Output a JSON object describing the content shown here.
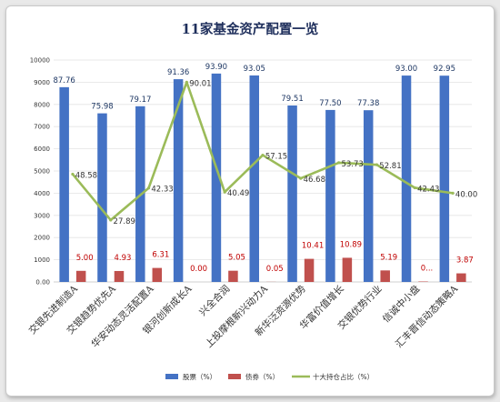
{
  "chart_data": {
    "type": "bar",
    "title": "11家基金资产配置一览",
    "categories": [
      "交银先进制造A",
      "交银趋势优先A",
      "华安动态灵活配置A",
      "银河创新成长A",
      "兴全合润",
      "上投摩根新兴动力A",
      "新华泛资源优势",
      "华富价值增长",
      "交银优势行业",
      "信诚中小盘",
      "汇丰晋信动态策略A"
    ],
    "ylim": [
      0,
      10000
    ],
    "yticks": [
      "0.00",
      "1000",
      "2000",
      "3000",
      "4000",
      "5000",
      "6000",
      "7000",
      "8000",
      "9000",
      "10000"
    ],
    "grid": true,
    "legend_position": "bottom",
    "series": [
      {
        "name": "股票（%）",
        "type": "bar",
        "color": "#4472c4",
        "values": [
          87.76,
          75.98,
          79.17,
          91.36,
          93.9,
          93.05,
          79.51,
          77.5,
          77.38,
          93.0,
          92.95
        ],
        "labels": [
          "87.76",
          "75.98",
          "79.17",
          "91.36",
          "93.90",
          "93.05",
          "79.51",
          "77.50",
          "77.38",
          "93.00",
          "92.95"
        ]
      },
      {
        "name": "债券（%）",
        "type": "bar",
        "color": "#c0504d",
        "values": [
          5.0,
          4.93,
          6.31,
          0.0,
          5.05,
          0.05,
          10.41,
          10.89,
          5.19,
          0.2,
          3.87
        ],
        "labels": [
          "5.00",
          "4.93",
          "6.31",
          "0.00",
          "5.05",
          "0.05",
          "10.41",
          "10.89",
          "5.19",
          "0...",
          "3.87"
        ]
      },
      {
        "name": "十大持仓占比（%）",
        "type": "line",
        "color": "#9bbb59",
        "values": [
          48.58,
          27.89,
          42.33,
          90.01,
          40.49,
          57.15,
          46.68,
          53.73,
          52.81,
          42.43,
          40.0
        ],
        "labels": [
          "48.58",
          "27.89",
          "42.33",
          "90.01",
          "40.49",
          "57.15",
          "46.68",
          "53.73",
          "52.81",
          "42.43",
          "40.00"
        ]
      }
    ]
  }
}
